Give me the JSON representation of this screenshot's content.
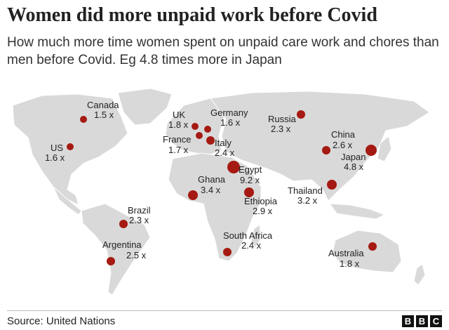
{
  "title": "Women did more unpaid work before Covid",
  "subtitle": "How much more time women spent on unpaid care work and chores than men before Covid. Eg 4.8 times more in Japan",
  "source": "Source: United Nations",
  "logo_letters": [
    "B",
    "B",
    "C"
  ],
  "colors": {
    "marker": "#a51a12",
    "land": "#d9d9d9",
    "water": "#ffffff"
  },
  "countries": [
    {
      "name": "Canada",
      "value": "1.5 x",
      "ratio": 1.5
    },
    {
      "name": "US",
      "value": "1.6 x",
      "ratio": 1.6
    },
    {
      "name": "UK",
      "value": "1.8 x",
      "ratio": 1.8
    },
    {
      "name": "France",
      "value": "1.7 x",
      "ratio": 1.7
    },
    {
      "name": "Germany",
      "value": "1.6 x",
      "ratio": 1.6
    },
    {
      "name": "Italy",
      "value": "2.4 x",
      "ratio": 2.4
    },
    {
      "name": "Russia",
      "value": "2.3 x",
      "ratio": 2.3
    },
    {
      "name": "China",
      "value": "2.6 x",
      "ratio": 2.6
    },
    {
      "name": "Japan",
      "value": "4.8 x",
      "ratio": 4.8
    },
    {
      "name": "Egypt",
      "value": "9.2 x",
      "ratio": 9.2
    },
    {
      "name": "Ghana",
      "value": "3.4 x",
      "ratio": 3.4
    },
    {
      "name": "Ethiopia",
      "value": "2.9 x",
      "ratio": 2.9
    },
    {
      "name": "Thailand",
      "value": "3.2 x",
      "ratio": 3.2
    },
    {
      "name": "Brazil",
      "value": "2.3 x",
      "ratio": 2.3
    },
    {
      "name": "Argentina",
      "value": "2.5 x",
      "ratio": 2.5
    },
    {
      "name": "South Africa",
      "value": "2.4 x",
      "ratio": 2.4
    },
    {
      "name": "Australia",
      "value": "1.8 x",
      "ratio": 1.8
    }
  ]
}
